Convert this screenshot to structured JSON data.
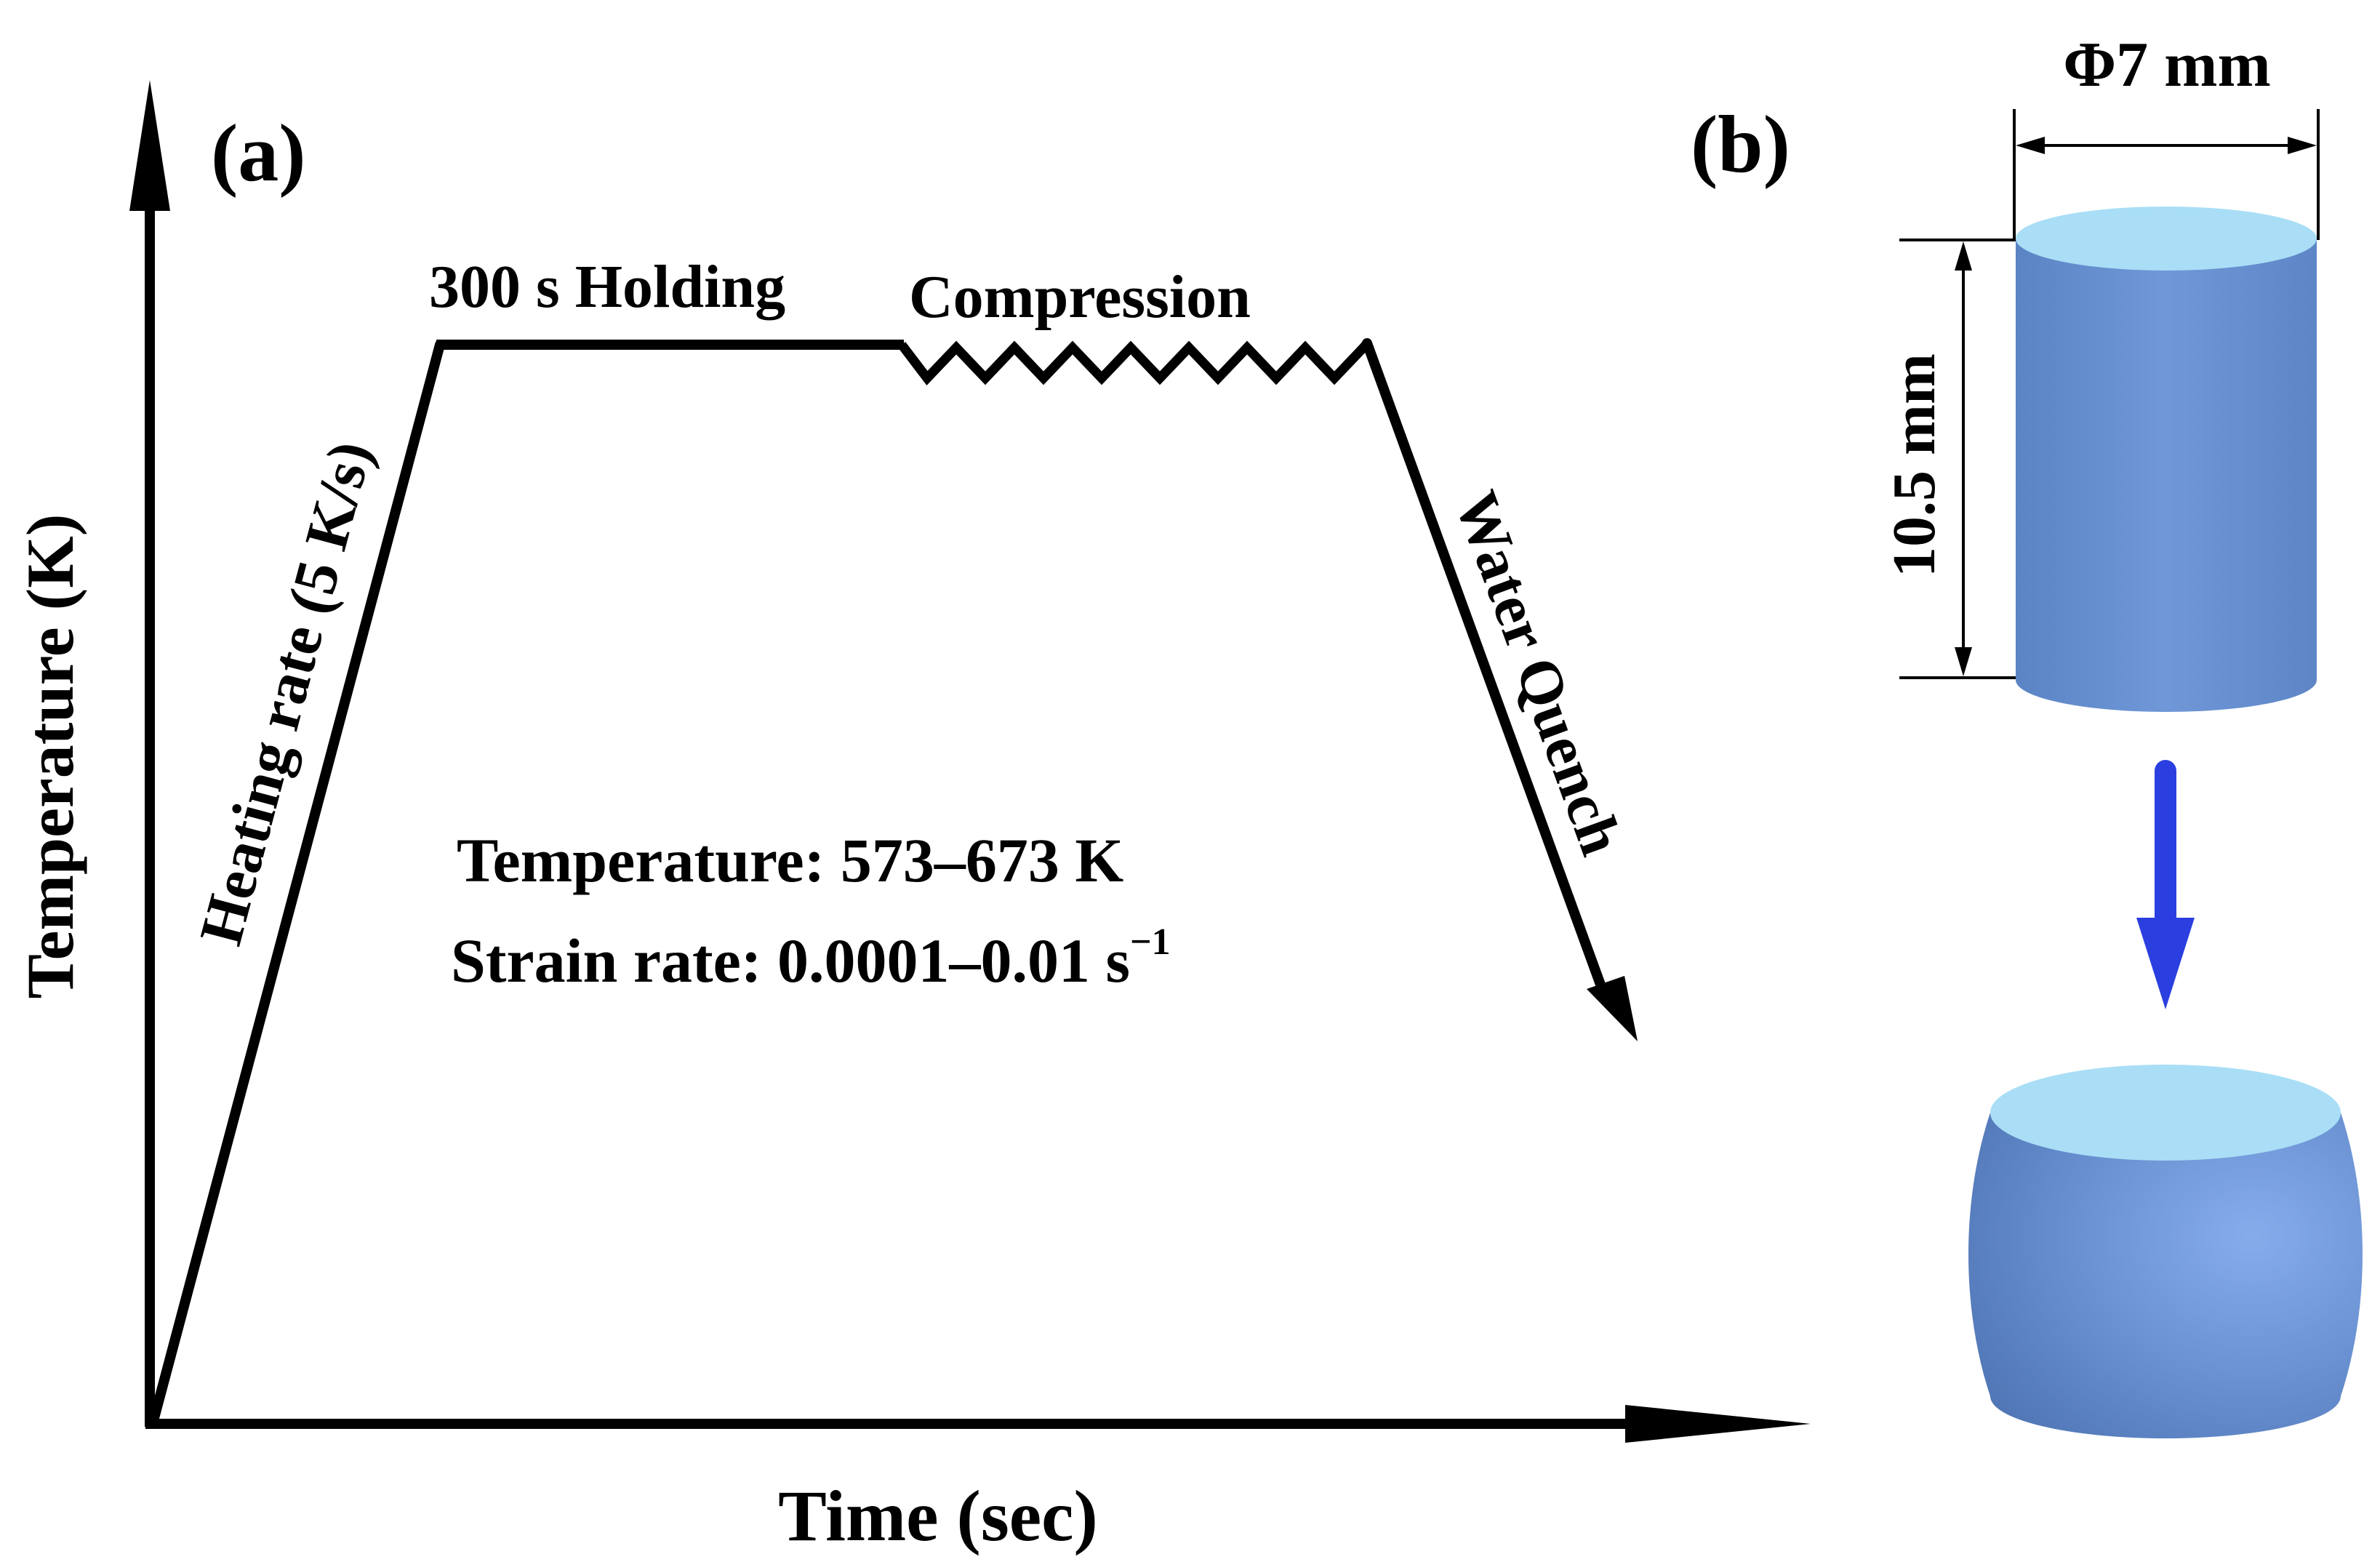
{
  "panel_a": {
    "label": "(a)",
    "y_axis_label": "Temperature (K)",
    "x_axis_label": "Time (sec)",
    "heating_label": "Heating rate (5 K/s)",
    "holding_label": "300 s Holding",
    "compression_label": "Compression",
    "quench_label": "Water Quench",
    "conditions": {
      "temperature": "Temperature: 573–673 K",
      "strain_rate_base": "Strain rate: 0.0001–0.01 s",
      "strain_rate_exponent": "−1"
    }
  },
  "panel_b": {
    "label": "(b)",
    "diameter_label": "Φ7 mm",
    "height_label": "10.5 mm"
  },
  "colors": {
    "line": "#000000",
    "cylinder_side": "#6a93d4",
    "cylinder_top": "#a9def6",
    "arrow": "#2b3fe0"
  }
}
